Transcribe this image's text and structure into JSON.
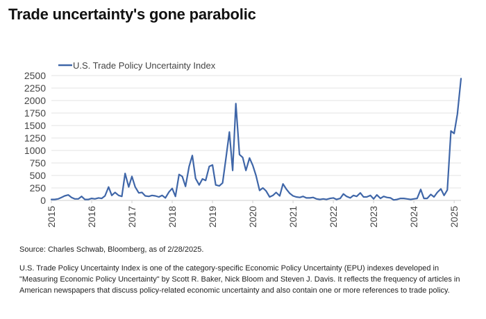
{
  "title": "Trade uncertainty's gone parabolic",
  "source": "Source: Charles Schwab, Bloomberg, as of 2/28/2025.",
  "note": "U.S. Trade Policy Uncertainty Index is one of the category-specific Economic Policy Uncertainty (EPU) indexes developed in \"Measuring Economic Policy Uncertainty\" by Scott R. Baker, Nick Bloom and Steven J. Davis. It reflects the frequency of articles in American newspapers that discuss policy-related economic uncertainty and also contain one or more references to trade policy.",
  "colors": {
    "series": "#3f66a8",
    "grid": "#e3e3e3",
    "axis": "#cfcfcf",
    "text": "#444444"
  },
  "chart_data": {
    "type": "line",
    "title": "",
    "xlabel": "",
    "ylabel": "",
    "legend": "top-left",
    "grid": true,
    "ylim": [
      0,
      2500
    ],
    "xlim": [
      2015.0,
      2025.17
    ],
    "yticks": [
      0,
      250,
      500,
      750,
      1000,
      1250,
      1500,
      1750,
      2000,
      2250,
      2500
    ],
    "xticks": [
      "2015",
      "2016",
      "2017",
      "2018",
      "2019",
      "2020",
      "2021",
      "2022",
      "2023",
      "2024",
      "2025"
    ],
    "series": [
      {
        "name": "U.S. Trade Policy Uncertainty Index",
        "x": [
          2015.0,
          2015.08,
          2015.17,
          2015.25,
          2015.33,
          2015.42,
          2015.5,
          2015.58,
          2015.67,
          2015.75,
          2015.83,
          2015.92,
          2016.0,
          2016.08,
          2016.17,
          2016.25,
          2016.33,
          2016.42,
          2016.5,
          2016.58,
          2016.67,
          2016.75,
          2016.83,
          2016.92,
          2017.0,
          2017.08,
          2017.17,
          2017.25,
          2017.33,
          2017.42,
          2017.5,
          2017.58,
          2017.67,
          2017.75,
          2017.83,
          2017.92,
          2018.0,
          2018.08,
          2018.17,
          2018.25,
          2018.33,
          2018.42,
          2018.5,
          2018.58,
          2018.67,
          2018.75,
          2018.83,
          2018.92,
          2019.0,
          2019.08,
          2019.17,
          2019.25,
          2019.33,
          2019.42,
          2019.5,
          2019.58,
          2019.67,
          2019.75,
          2019.83,
          2019.92,
          2020.0,
          2020.08,
          2020.17,
          2020.25,
          2020.33,
          2020.42,
          2020.5,
          2020.58,
          2020.67,
          2020.75,
          2020.83,
          2020.92,
          2021.0,
          2021.08,
          2021.17,
          2021.25,
          2021.33,
          2021.42,
          2021.5,
          2021.58,
          2021.67,
          2021.75,
          2021.83,
          2021.92,
          2022.0,
          2022.08,
          2022.17,
          2022.25,
          2022.33,
          2022.42,
          2022.5,
          2022.58,
          2022.67,
          2022.75,
          2022.83,
          2022.92,
          2023.0,
          2023.08,
          2023.17,
          2023.25,
          2023.33,
          2023.42,
          2023.5,
          2023.58,
          2023.67,
          2023.75,
          2023.83,
          2023.92,
          2024.0,
          2024.08,
          2024.17,
          2024.25,
          2024.33,
          2024.42,
          2024.5,
          2024.58,
          2024.67,
          2024.75,
          2024.83,
          2024.92,
          2025.0,
          2025.08,
          2025.17
        ],
        "values": [
          20,
          20,
          30,
          60,
          90,
          110,
          60,
          30,
          30,
          80,
          20,
          20,
          40,
          30,
          50,
          40,
          90,
          270,
          100,
          160,
          100,
          80,
          540,
          270,
          480,
          270,
          150,
          160,
          90,
          80,
          100,
          90,
          70,
          100,
          50,
          170,
          240,
          80,
          520,
          480,
          280,
          680,
          900,
          440,
          310,
          430,
          400,
          680,
          710,
          310,
          290,
          350,
          820,
          1370,
          600,
          1940,
          920,
          860,
          600,
          850,
          700,
          500,
          200,
          250,
          190,
          70,
          100,
          160,
          90,
          330,
          230,
          140,
          90,
          70,
          60,
          80,
          50,
          50,
          60,
          30,
          20,
          30,
          20,
          40,
          50,
          20,
          40,
          130,
          80,
          50,
          100,
          80,
          150,
          70,
          70,
          100,
          30,
          110,
          40,
          80,
          60,
          50,
          10,
          20,
          40,
          40,
          30,
          20,
          30,
          40,
          220,
          40,
          40,
          120,
          70,
          160,
          230,
          100,
          210,
          1390,
          1340,
          1730,
          2440
        ]
      }
    ]
  }
}
